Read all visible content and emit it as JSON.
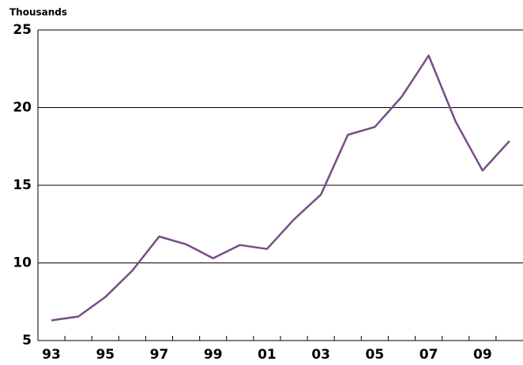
{
  "chart_data": {
    "type": "line",
    "y_label": "Thousands",
    "categories": [
      "93",
      null,
      "95",
      null,
      "97",
      null,
      "99",
      null,
      "01",
      null,
      "03",
      null,
      "05",
      null,
      "07",
      null,
      "09",
      null
    ],
    "series": [
      {
        "color": "#7b4a8e",
        "values": [
          6.3,
          6.55,
          7.8,
          9.5,
          11.7,
          11.2,
          10.3,
          11.15,
          10.9,
          12.8,
          14.4,
          18.25,
          18.75,
          20.7,
          23.35,
          19.1,
          15.95,
          17.85
        ]
      }
    ],
    "ylim": [
      5,
      25
    ],
    "yticks": [
      5,
      10,
      15,
      20,
      25
    ],
    "grid": true
  }
}
